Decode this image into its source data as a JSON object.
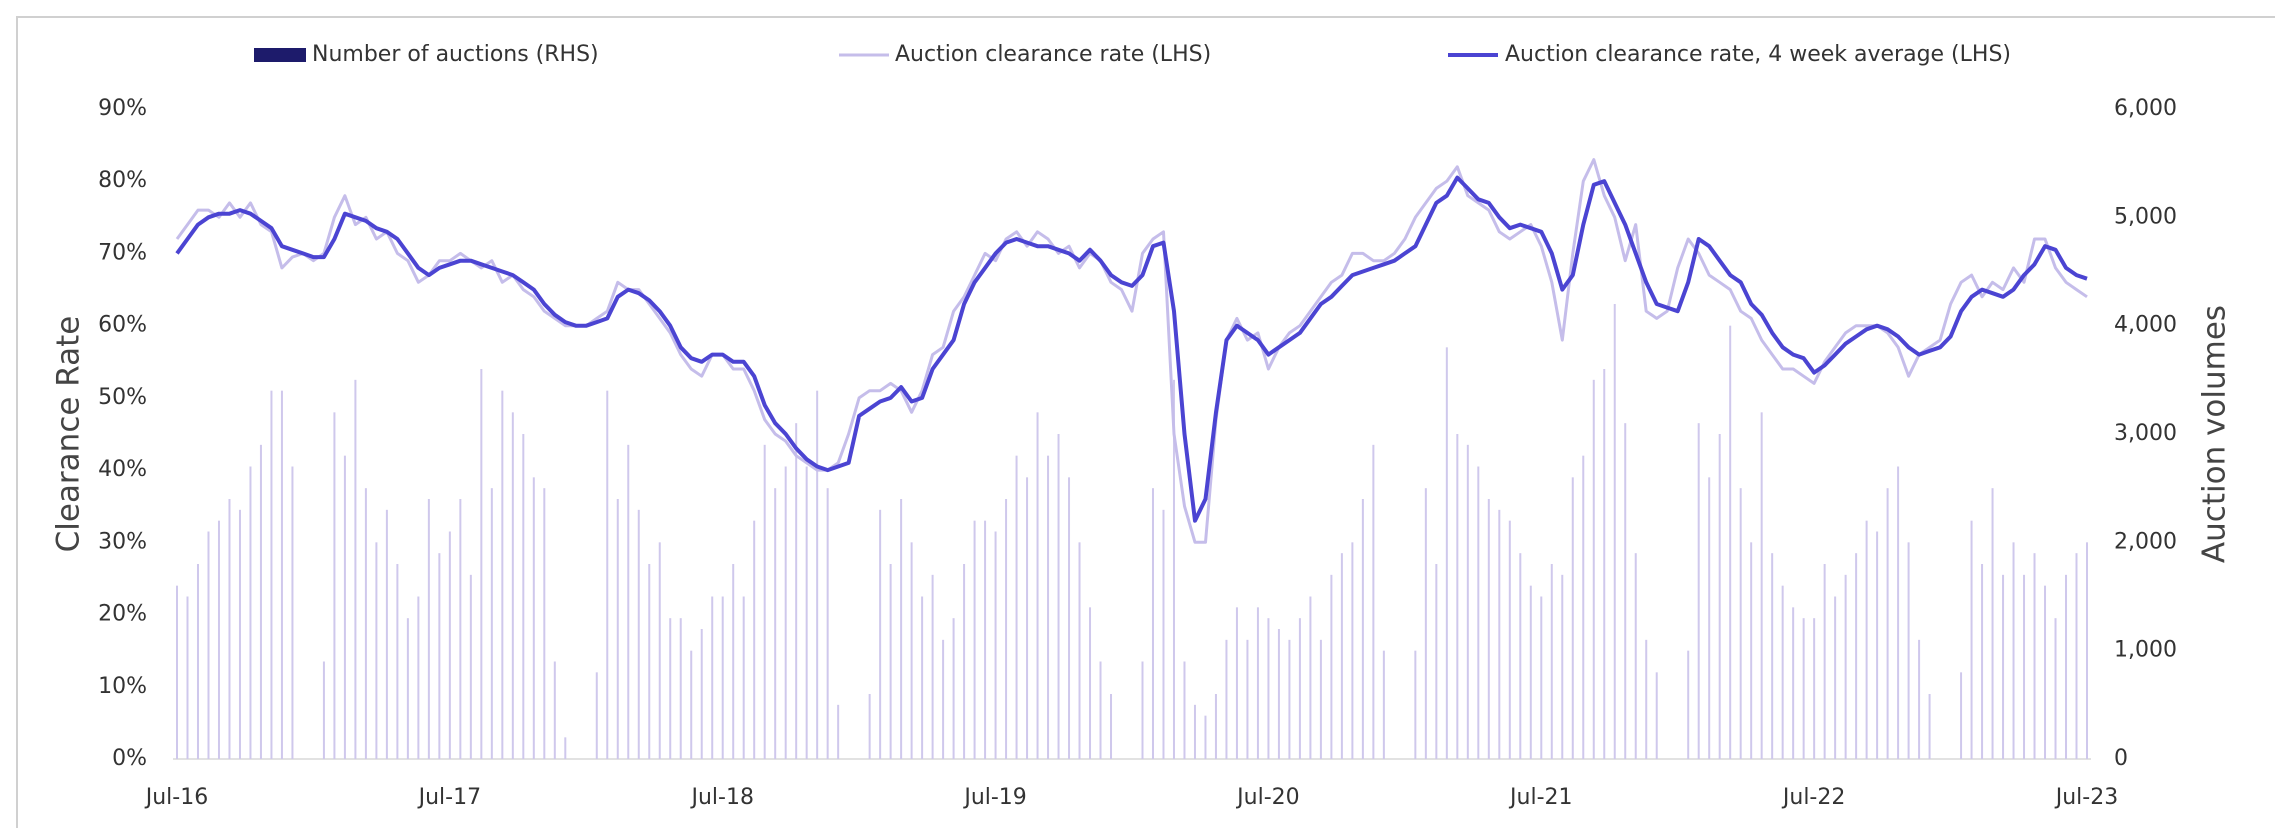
{
  "chart_data": {
    "type": "bar_line",
    "ylabel": "Clearance Rate",
    "y2label": "Auction volumes",
    "categories": [
      "Jul-16",
      null,
      null,
      null,
      null,
      null,
      null,
      null,
      null,
      null,
      null,
      null,
      null,
      null,
      null,
      null,
      null,
      null,
      null,
      null,
      null,
      null,
      null,
      null,
      null,
      null,
      "Jul-17",
      null,
      null,
      null,
      null,
      null,
      null,
      null,
      null,
      null,
      null,
      null,
      null,
      null,
      null,
      null,
      null,
      null,
      null,
      null,
      null,
      null,
      null,
      null,
      null,
      null,
      "Jul-18",
      null,
      null,
      null,
      null,
      null,
      null,
      null,
      null,
      null,
      null,
      null,
      null,
      null,
      null,
      null,
      null,
      null,
      null,
      null,
      null,
      null,
      null,
      null,
      null,
      null,
      "Jul-19",
      null,
      null,
      null,
      null,
      null,
      null,
      null,
      null,
      null,
      null,
      null,
      null,
      null,
      null,
      null,
      null,
      null,
      null,
      null,
      null,
      null,
      null,
      null,
      null,
      null,
      "Jul-20",
      null,
      null,
      null,
      null,
      null,
      null,
      null,
      null,
      null,
      null,
      null,
      null,
      null,
      null,
      null,
      null,
      null,
      null,
      null,
      null,
      null,
      null,
      null,
      null,
      null,
      "Jul-21",
      null,
      null,
      null,
      null,
      null,
      null,
      null,
      null,
      null,
      null,
      null,
      null,
      null,
      null,
      null,
      null,
      null,
      null,
      null,
      null,
      null,
      null,
      null,
      null,
      null,
      "Jul-22",
      null,
      null,
      null,
      null,
      null,
      null,
      null,
      null,
      null,
      null,
      null,
      null,
      null,
      null,
      null,
      null,
      null,
      null,
      null,
      null,
      null,
      null,
      null,
      null,
      null,
      "Jul-23"
    ],
    "series": [
      {
        "name": "Number of auctions (RHS)",
        "type": "bar",
        "axis": "y2",
        "color": "#cfc8ec",
        "legend_color": "#1d1b6b",
        "values": [
          1600,
          1500,
          1800,
          2100,
          2200,
          2400,
          2300,
          2700,
          2900,
          3400,
          3400,
          2700,
          0,
          0,
          900,
          3200,
          2800,
          3500,
          2500,
          2000,
          2300,
          1800,
          1300,
          1500,
          2400,
          1900,
          2100,
          2400,
          1700,
          3600,
          2500,
          3400,
          3200,
          3000,
          2600,
          2500,
          900,
          200,
          0,
          0,
          800,
          3400,
          2400,
          2900,
          2300,
          1800,
          2000,
          1300,
          1300,
          1000,
          1200,
          1500,
          1500,
          1800,
          1500,
          2200,
          2900,
          2500,
          2700,
          3100,
          2700,
          3400,
          2500,
          500,
          0,
          0,
          600,
          2300,
          1800,
          2400,
          2000,
          1500,
          1700,
          1100,
          1300,
          1800,
          2200,
          2200,
          2100,
          2400,
          2800,
          2600,
          3200,
          2800,
          3000,
          2600,
          2000,
          1400,
          900,
          600,
          0,
          0,
          900,
          2500,
          2300,
          3500,
          900,
          500,
          400,
          600,
          1100,
          1400,
          1100,
          1400,
          1300,
          1200,
          1100,
          1300,
          1500,
          1100,
          1700,
          1900,
          2000,
          2400,
          2900,
          1000,
          0,
          0,
          1000,
          2500,
          1800,
          3800,
          3000,
          2900,
          2700,
          2400,
          2300,
          2200,
          1900,
          1600,
          1500,
          1800,
          1700,
          2600,
          2800,
          3500,
          3600,
          4200,
          3100,
          1900,
          1100,
          800,
          0,
          0,
          1000,
          3100,
          2600,
          3000,
          4000,
          2500,
          2000,
          3200,
          1900,
          1600,
          1400,
          1300,
          1300,
          1800,
          1500,
          1700,
          1900,
          2200,
          2100,
          2500,
          2700,
          2000,
          1100,
          600,
          0,
          0,
          800,
          2200,
          1800,
          2500,
          1700,
          2000,
          1700,
          1900,
          1600,
          1300,
          1700,
          1900,
          2000
        ]
      },
      {
        "name": "Auction clearance rate (LHS)",
        "type": "line",
        "color": "#c5bdea",
        "width": 3,
        "values": [
          72,
          74,
          76,
          76,
          75,
          77,
          75,
          77,
          74,
          73,
          68,
          69.5,
          70,
          69,
          70,
          75,
          78,
          74,
          75,
          72,
          73,
          70,
          69,
          66,
          67,
          69,
          69,
          70,
          69,
          68,
          69,
          66,
          67,
          65,
          64,
          62,
          61,
          60,
          60,
          60,
          61,
          62,
          66,
          65,
          65,
          63,
          61,
          59,
          56,
          54,
          53,
          56,
          56,
          54,
          54,
          51,
          47,
          45,
          44,
          42,
          41,
          40,
          40,
          41,
          45,
          50,
          51,
          51,
          52,
          51,
          48,
          51,
          56,
          57,
          62,
          64,
          67,
          70,
          69,
          72,
          73,
          71,
          73,
          72,
          70,
          71,
          68,
          70,
          69,
          66,
          65,
          62,
          70,
          72,
          73,
          45,
          35,
          30,
          30,
          47,
          58,
          61,
          58,
          59,
          54,
          57,
          59,
          60,
          62,
          64,
          66,
          67,
          70,
          70,
          69,
          69,
          70,
          72,
          75,
          77,
          79,
          80,
          82,
          78,
          77,
          76,
          73,
          72,
          73,
          74,
          71,
          66,
          58,
          70,
          80,
          83,
          78,
          75,
          69,
          74,
          62,
          61,
          62,
          68,
          72,
          70,
          67,
          66,
          65,
          62,
          61,
          58,
          56,
          54,
          54,
          53,
          52,
          55,
          57,
          59,
          60,
          60,
          60,
          59,
          57,
          53,
          56,
          57,
          58,
          63,
          66,
          67,
          64,
          66,
          65,
          68,
          66,
          72,
          72,
          68,
          66,
          65,
          64
        ]
      },
      {
        "name": "Auction clearance rate, 4 week average (LHS)",
        "type": "line",
        "color": "#4b44d2",
        "width": 4,
        "values": [
          70,
          72,
          74,
          75,
          75.5,
          75.5,
          76,
          75.5,
          74.5,
          73.5,
          71,
          70.5,
          70,
          69.5,
          69.5,
          72,
          75.5,
          75,
          74.5,
          73.5,
          73,
          72,
          70,
          68,
          67,
          68,
          68.5,
          69,
          69,
          68.5,
          68,
          67.5,
          67,
          66,
          65,
          63,
          61.5,
          60.5,
          60,
          60,
          60.5,
          61,
          64,
          65,
          64.5,
          63.5,
          62,
          60,
          57,
          55.5,
          55,
          56,
          56,
          55,
          55,
          53,
          49,
          46.5,
          45,
          43,
          41.5,
          40.5,
          40,
          40.5,
          41,
          47.5,
          48.5,
          49.5,
          50,
          51.5,
          49.5,
          50,
          54,
          56,
          58,
          63,
          66,
          68,
          70,
          71.5,
          72,
          71.5,
          71,
          71,
          70.5,
          70,
          69,
          70.5,
          69,
          67,
          66,
          65.5,
          67,
          71,
          71.5,
          62,
          45,
          33,
          36,
          48,
          58,
          60,
          59,
          58,
          56,
          57,
          58,
          59,
          61,
          63,
          64,
          65.5,
          67,
          67.5,
          68,
          68.5,
          69,
          70,
          71,
          74,
          77,
          78,
          80.5,
          79,
          77.5,
          77,
          75,
          73.5,
          74,
          73.5,
          73,
          70,
          65,
          67,
          74,
          79.5,
          80,
          77,
          74,
          70,
          66,
          63,
          62.5,
          62,
          66,
          72,
          71,
          69,
          67,
          66,
          63,
          61.5,
          59,
          57,
          56,
          55.5,
          53.5,
          54.5,
          56,
          57.5,
          58.5,
          59.5,
          60,
          59.5,
          58.5,
          57,
          56,
          56.5,
          57,
          58.5,
          62,
          64,
          65,
          64.5,
          64,
          65,
          67,
          68.5,
          71,
          70.5,
          68,
          67,
          66.5
        ]
      }
    ],
    "ylim": [
      0,
      90
    ],
    "yticks": [
      {
        "value": 0,
        "label": "0%"
      },
      {
        "value": 10,
        "label": "10%"
      },
      {
        "value": 20,
        "label": "20%"
      },
      {
        "value": 30,
        "label": "30%"
      },
      {
        "value": 40,
        "label": "40%"
      },
      {
        "value": 50,
        "label": "50%"
      },
      {
        "value": 60,
        "label": "60%"
      },
      {
        "value": 70,
        "label": "70%"
      },
      {
        "value": 80,
        "label": "80%"
      },
      {
        "value": 90,
        "label": "90%"
      }
    ],
    "y2lim": [
      0,
      6000
    ],
    "y2ticks": [
      0,
      {
        "value": 1000,
        "label": "1,000"
      },
      {
        "value": 2000,
        "label": "2,000"
      },
      {
        "value": 3000,
        "label": "3,000"
      },
      {
        "value": 4000,
        "label": "4,000"
      },
      {
        "value": 5000,
        "label": "5,000"
      },
      {
        "value": 6000,
        "label": "6,000"
      }
    ],
    "grid": false,
    "legend": "top"
  }
}
